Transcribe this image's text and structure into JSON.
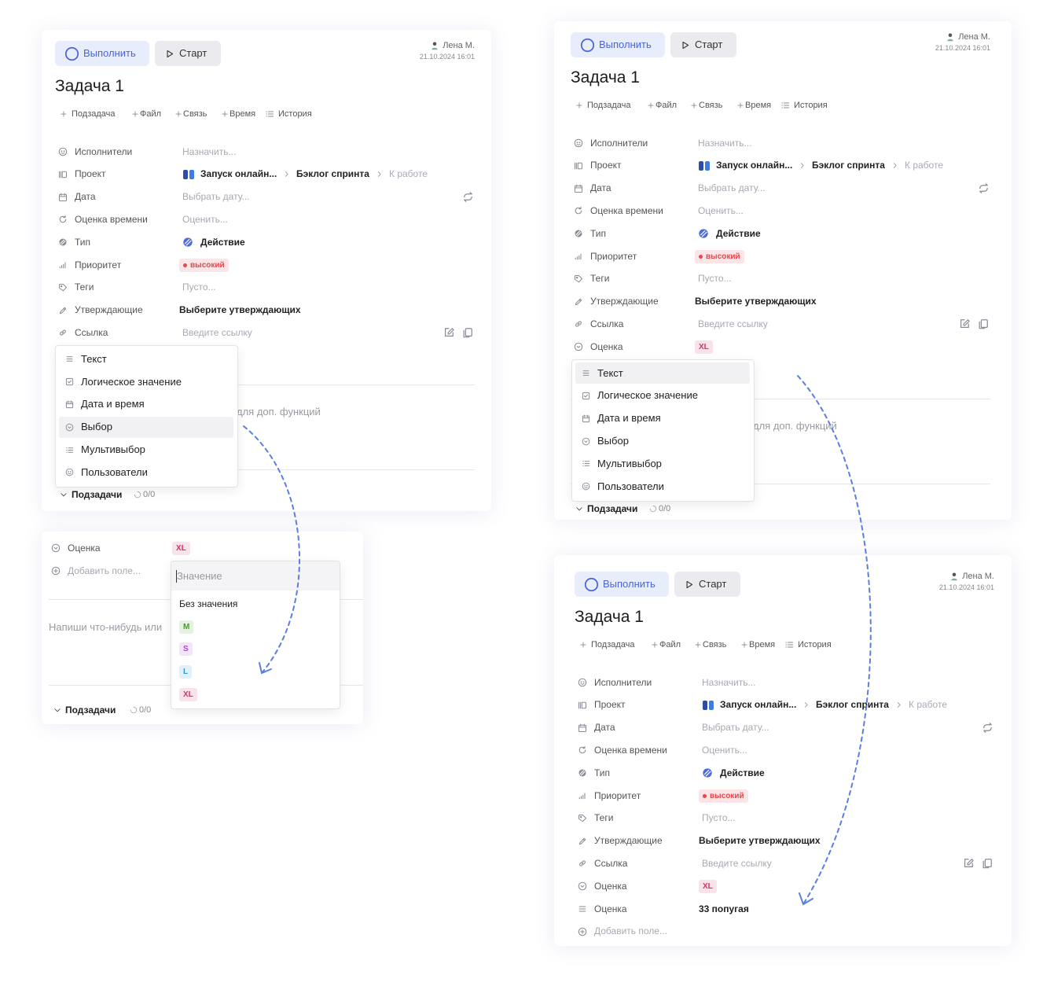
{
  "cards": [
    {
      "header": {
        "complete": "Выполнить",
        "start": "Старт",
        "user": "Лена М.",
        "datetime": "21.10.2024 16:01"
      },
      "title": "Задача 1",
      "actions": [
        {
          "label": "Подзадача",
          "icon": "plus"
        },
        {
          "label": "Файл",
          "icon": "plus"
        },
        {
          "label": "Связь",
          "icon": "plus"
        },
        {
          "label": "Время",
          "icon": "plus"
        },
        {
          "label": "История",
          "icon": "list"
        }
      ],
      "fields": [
        {
          "label": "Исполнители",
          "icon": "users",
          "value": "Назначить...",
          "state": "empty"
        },
        {
          "label": "Проект",
          "icon": "project",
          "value": [
            "Запуск онлайн...",
            "Бэклог спринта",
            "К работе"
          ]
        },
        {
          "label": "Дата",
          "icon": "calendar",
          "value": "Выбрать дату...",
          "state": "empty"
        },
        {
          "label": "Оценка времени",
          "icon": "refresh",
          "value": "Оценить...",
          "state": "empty"
        },
        {
          "label": "Тип",
          "icon": "type",
          "value": "Действие",
          "state": "filled"
        },
        {
          "label": "Приоритет",
          "icon": "priority",
          "value": {
            "badge": "высокий",
            "color": "#e5484d",
            "dot": true
          }
        },
        {
          "label": "Теги",
          "icon": "tag",
          "value": "Пусто...",
          "state": "empty"
        },
        {
          "label": "Утверждающие",
          "icon": "approve",
          "value": "Выберите утверждающих",
          "state": "filled"
        },
        {
          "label": "Ссылка",
          "icon": "link",
          "value": "Введите ссылку",
          "state": "empty"
        }
      ],
      "menu": {
        "highlighted": 3,
        "items": [
          {
            "label": "Текст",
            "icon": "text"
          },
          {
            "label": "Логическое значение",
            "icon": "check"
          },
          {
            "label": "Дата и время",
            "icon": "calendar"
          },
          {
            "label": "Выбор",
            "icon": "select"
          },
          {
            "label": "Мультивыбор",
            "icon": "list"
          },
          {
            "label": "Пользователи",
            "icon": "users"
          }
        ]
      },
      "editor_hint": "для доп. функций",
      "subtasks": {
        "label": "Подзадачи",
        "count": "0/0"
      }
    },
    {
      "header": {
        "complete": "Выполнить",
        "start": "Старт",
        "user": "Лена М.",
        "datetime": "21.10.2024 16:01"
      },
      "title": "Задача 1",
      "actions": [
        {
          "label": "Подзадача",
          "icon": "plus"
        },
        {
          "label": "Файл",
          "icon": "plus"
        },
        {
          "label": "Связь",
          "icon": "plus"
        },
        {
          "label": "Время",
          "icon": "plus"
        },
        {
          "label": "История",
          "icon": "list"
        }
      ],
      "fields": [
        {
          "label": "Исполнители",
          "icon": "users",
          "value": "Назначить...",
          "state": "empty"
        },
        {
          "label": "Проект",
          "icon": "project",
          "value": [
            "Запуск онлайн...",
            "Бэклог спринта",
            "К работе"
          ]
        },
        {
          "label": "Дата",
          "icon": "calendar",
          "value": "Выбрать дату...",
          "state": "empty"
        },
        {
          "label": "Оценка времени",
          "icon": "refresh",
          "value": "Оценить...",
          "state": "empty"
        },
        {
          "label": "Тип",
          "icon": "type",
          "value": "Действие",
          "state": "filled"
        },
        {
          "label": "Приоритет",
          "icon": "priority",
          "value": {
            "badge": "высокий",
            "color": "#e5484d",
            "dot": true
          }
        },
        {
          "label": "Теги",
          "icon": "tag",
          "value": "Пусто...",
          "state": "empty"
        },
        {
          "label": "Утверждающие",
          "icon": "approve",
          "value": "Выберите утверждающих",
          "state": "filled"
        },
        {
          "label": "Ссылка",
          "icon": "link",
          "value": "Введите ссылку",
          "state": "empty"
        },
        {
          "label": "Оценка",
          "icon": "select",
          "value": {
            "badge": "XL",
            "color": "#d6336c"
          }
        }
      ],
      "menu": {
        "highlighted": 0,
        "items": [
          {
            "label": "Текст",
            "icon": "text"
          },
          {
            "label": "Логическое значение",
            "icon": "check"
          },
          {
            "label": "Дата и время",
            "icon": "calendar"
          },
          {
            "label": "Выбор",
            "icon": "select"
          },
          {
            "label": "Мультивыбор",
            "icon": "list"
          },
          {
            "label": "Пользователи",
            "icon": "users"
          }
        ]
      },
      "editor_hint": "для доп. функций",
      "subtasks": {
        "label": "Подзадачи",
        "count": "0/0"
      }
    },
    {
      "header": {
        "complete": "Выполнить",
        "start": "Старт",
        "user": "Лена М.",
        "datetime": "21.10.2024 16:01"
      },
      "title": "Задача 1",
      "actions": [
        {
          "label": "Подзадача",
          "icon": "plus"
        },
        {
          "label": "Файл",
          "icon": "plus"
        },
        {
          "label": "Связь",
          "icon": "plus"
        },
        {
          "label": "Время",
          "icon": "plus"
        },
        {
          "label": "История",
          "icon": "list"
        }
      ],
      "fields": [
        {
          "label": "Исполнители",
          "icon": "users",
          "value": "Назначить...",
          "state": "empty"
        },
        {
          "label": "Проект",
          "icon": "project",
          "value": [
            "Запуск онлайн...",
            "Бэклог спринта",
            "К работе"
          ]
        },
        {
          "label": "Дата",
          "icon": "calendar",
          "value": "Выбрать дату...",
          "state": "empty"
        },
        {
          "label": "Оценка времени",
          "icon": "refresh",
          "value": "Оценить...",
          "state": "empty"
        },
        {
          "label": "Тип",
          "icon": "type",
          "value": "Действие",
          "state": "filled"
        },
        {
          "label": "Приоритет",
          "icon": "priority",
          "value": {
            "badge": "высокий",
            "color": "#e5484d",
            "dot": true
          }
        },
        {
          "label": "Теги",
          "icon": "tag",
          "value": "Пусто...",
          "state": "empty"
        },
        {
          "label": "Утверждающие",
          "icon": "approve",
          "value": "Выберите утверждающих",
          "state": "filled"
        },
        {
          "label": "Ссылка",
          "icon": "link",
          "value": "Введите ссылку",
          "state": "empty"
        },
        {
          "label": "Оценка",
          "icon": "select",
          "value": {
            "badge": "XL",
            "color": "#d6336c"
          }
        },
        {
          "label": "Оценка",
          "icon": "text",
          "value": "33 попугая",
          "state": "filled"
        }
      ],
      "add_field": "Добавить поле..."
    }
  ],
  "field_popup": {
    "field": {
      "label": "Оценка",
      "icon": "select",
      "value": {
        "badge": "XL",
        "color": "#d6336c"
      }
    },
    "add_field": "Добавить поле...",
    "editor_hint": "Напиши что-нибудь или",
    "subtasks": {
      "label": "Подзадачи",
      "count": "0/0"
    },
    "dropdown": {
      "placeholder": "Значение",
      "none": "Без значения",
      "options": [
        {
          "badge": "M",
          "color": "#4a9a2e"
        },
        {
          "badge": "S",
          "color": "#a54ad1"
        },
        {
          "badge": "L",
          "color": "#2f9bd1"
        },
        {
          "badge": "XL",
          "color": "#d6336c"
        }
      ]
    }
  }
}
